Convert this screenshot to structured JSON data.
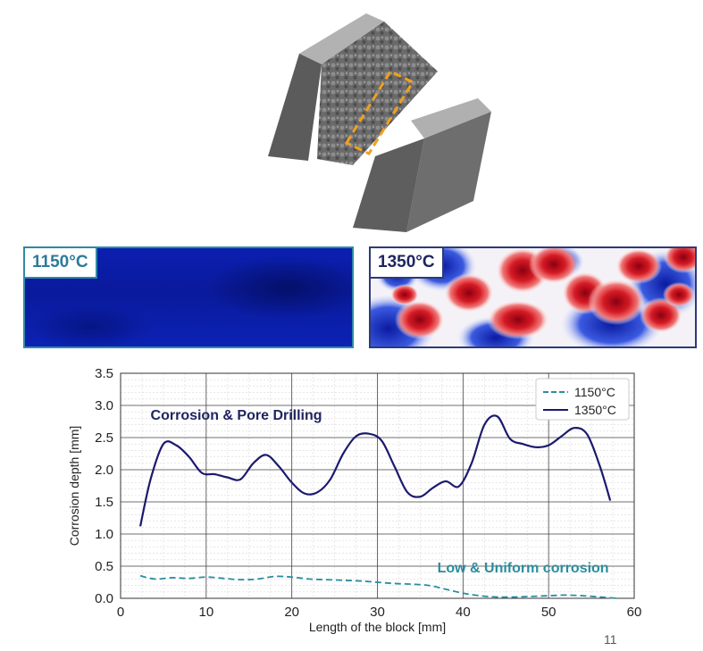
{
  "heatmaps": [
    {
      "label": "1150°C",
      "color": "#2d7b9a"
    },
    {
      "label": "1350°C",
      "color": "#1f2560"
    }
  ],
  "page_number": "11",
  "chart_data": {
    "type": "line",
    "xlabel": "Length of the block [mm]",
    "ylabel": "Corrosion depth [mm]",
    "xlim": [
      0,
      60
    ],
    "ylim": [
      0,
      3.5
    ],
    "xticks": [
      0,
      10,
      20,
      30,
      40,
      50,
      60
    ],
    "yticks": [
      0.0,
      0.5,
      1.0,
      1.5,
      2.0,
      2.5,
      3.0,
      3.5
    ],
    "grid": true,
    "legend_position": "top-right",
    "annotations": [
      {
        "text": "Corrosion & Pore Drilling",
        "color": "#1f2560"
      },
      {
        "text": "Low & Uniform corrosion",
        "color": "#2a8ea0"
      }
    ],
    "series": [
      {
        "name": "1150°C",
        "color": "#2a8ea0",
        "style": "dashed",
        "x": [
          2.3,
          4,
          6,
          8,
          10,
          12,
          14,
          16,
          18,
          20,
          22,
          24,
          26,
          28,
          30,
          32,
          34,
          36,
          38,
          40,
          42,
          44,
          46,
          48,
          50,
          52,
          54,
          56,
          58
        ],
        "y": [
          0.35,
          0.3,
          0.32,
          0.31,
          0.33,
          0.31,
          0.29,
          0.3,
          0.34,
          0.33,
          0.3,
          0.29,
          0.28,
          0.27,
          0.25,
          0.23,
          0.22,
          0.2,
          0.14,
          0.08,
          0.04,
          0.02,
          0.02,
          0.03,
          0.04,
          0.05,
          0.04,
          0.02,
          0.0
        ]
      },
      {
        "name": "1350°C",
        "color": "#1a1a6e",
        "style": "solid",
        "x": [
          2.3,
          3.5,
          5.0,
          6.5,
          8.0,
          9.5,
          11.0,
          12.5,
          14.0,
          15.5,
          17.0,
          18.5,
          20.0,
          21.5,
          23.0,
          24.5,
          26.0,
          27.5,
          29.0,
          30.5,
          32.0,
          33.5,
          35.0,
          36.5,
          38.0,
          39.5,
          41.0,
          42.5,
          44.0,
          45.5,
          47.0,
          48.5,
          50.0,
          51.5,
          53.0,
          54.5,
          56.0,
          57.2
        ],
        "y": [
          1.12,
          1.85,
          2.4,
          2.38,
          2.2,
          1.95,
          1.93,
          1.88,
          1.85,
          2.1,
          2.23,
          2.05,
          1.8,
          1.63,
          1.65,
          1.85,
          2.25,
          2.52,
          2.56,
          2.45,
          2.05,
          1.65,
          1.58,
          1.72,
          1.82,
          1.74,
          2.1,
          2.7,
          2.83,
          2.48,
          2.4,
          2.35,
          2.38,
          2.52,
          2.65,
          2.55,
          2.05,
          1.52
        ]
      }
    ]
  }
}
